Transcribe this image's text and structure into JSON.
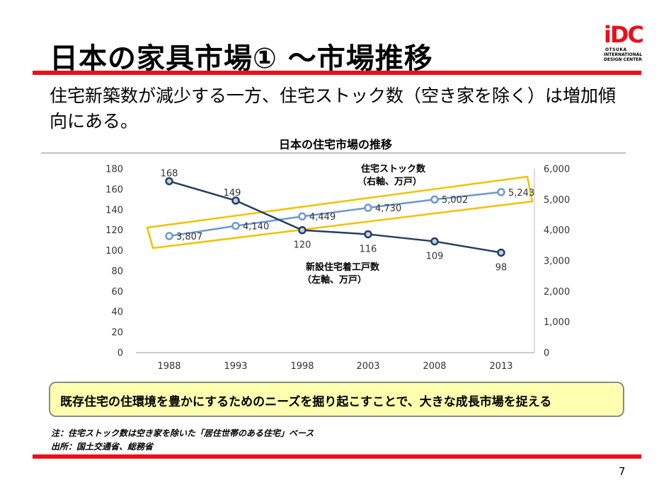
{
  "title": "日本の家具市場① ～市場推移",
  "logo": {
    "main": "iDC",
    "line1": "OTSUKA",
    "line2": "INTERNATIONAL",
    "line3": "DESIGN CENTER"
  },
  "subtitle": "住宅新築数が減少する一方、住宅ストック数（空き家を除く）は増加傾向にある。",
  "chart_data": {
    "type": "line",
    "title": "日本の住宅市場の推移",
    "categories": [
      "1988",
      "1993",
      "1998",
      "2003",
      "2008",
      "2013"
    ],
    "y_left": {
      "min": 0,
      "max": 180,
      "ticks": [
        "0",
        "20",
        "40",
        "60",
        "80",
        "100",
        "120",
        "140",
        "160",
        "180"
      ]
    },
    "y_right": {
      "min": 0,
      "max": 6000,
      "ticks": [
        "0",
        "1,000",
        "2,000",
        "3,000",
        "4,000",
        "5,000",
        "6,000"
      ]
    },
    "series": [
      {
        "name": "新設住宅着工戸数",
        "name_line1": "新設住宅着工戸数",
        "name_line2": "（左軸、万戸）",
        "axis": "left",
        "color": "#243f60",
        "values": [
          168,
          149,
          120,
          116,
          109,
          98
        ],
        "labels": [
          "168",
          "149",
          "120",
          "116",
          "109",
          "98"
        ]
      },
      {
        "name": "住宅ストック数",
        "name_line1": "住宅ストック数",
        "name_line2": "（右軸、万戸）",
        "axis": "right",
        "color": "#6d96d2",
        "values": [
          3807,
          4140,
          4449,
          4730,
          5002,
          5243
        ],
        "labels": [
          "3,807",
          "4,140",
          "4,449",
          "4,730",
          "5,002",
          "5,243"
        ]
      }
    ],
    "highlight_color": "#f2c200"
  },
  "callout": "既存住宅の住環境を豊かにするためのニーズを掘り起こすことで、大きな成長市場を捉える",
  "notes": {
    "note": "注：住宅ストック数は空き家を除いた「居住世帯のある住宅」ベース",
    "source": "出所：国土交通省、総務省"
  },
  "page_number": "7",
  "colors": {
    "accent": "#e8111a",
    "callout_bg": "#ffffb0"
  }
}
